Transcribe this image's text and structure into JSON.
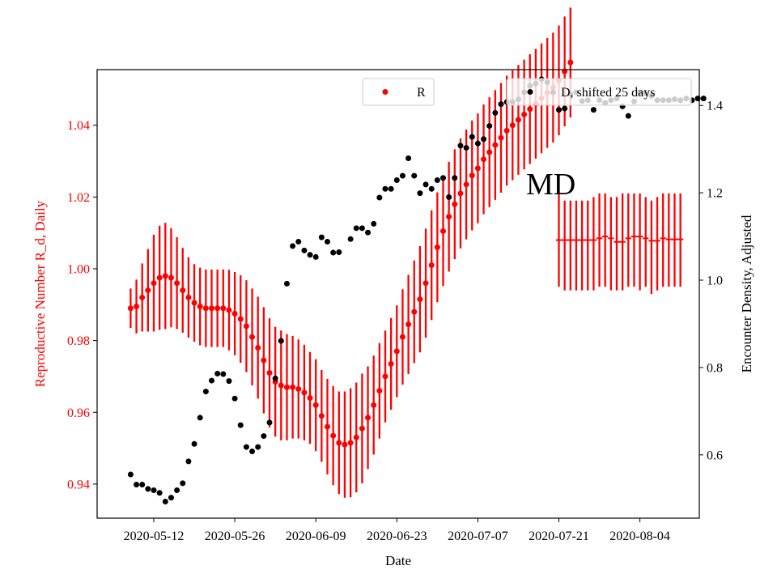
{
  "chart_data": {
    "type": "scatter",
    "title": "",
    "xlabel": "Date",
    "ylabel_left": "Reproductive Number R_d, Daily",
    "ylabel_right": "Encounter Density, Adjusted",
    "annotation": "MD",
    "x_tick_labels": [
      "2020-05-12",
      "2020-05-26",
      "2020-06-09",
      "2020-06-23",
      "2020-07-07",
      "2020-07-21",
      "2020-08-04"
    ],
    "ylim_left": [
      0.9305,
      1.0555
    ],
    "yticks_left": [
      "0.94",
      "0.96",
      "0.98",
      "1.00",
      "1.02",
      "1.04"
    ],
    "ylim_right": [
      0.455,
      1.482
    ],
    "yticks_right": [
      "0.6",
      "0.8",
      "1.0",
      "1.2",
      "1.4"
    ],
    "colors": {
      "R": "#ff0000",
      "D": "#000000",
      "axis_left": "#ff0000"
    },
    "legend": {
      "R_label": "R",
      "D_label": "D, shifted 25 days"
    },
    "R_series": {
      "name": "R",
      "start_date": "2020-05-08",
      "values": [
        0.989,
        0.9895,
        0.992,
        0.994,
        0.996,
        0.9975,
        0.998,
        0.9975,
        0.996,
        0.994,
        0.992,
        0.9905,
        0.9895,
        0.989,
        0.989,
        0.989,
        0.989,
        0.9885,
        0.9875,
        0.986,
        0.984,
        0.981,
        0.978,
        0.9745,
        0.971,
        0.9685,
        0.9675,
        0.967,
        0.967,
        0.9665,
        0.9655,
        0.964,
        0.962,
        0.959,
        0.956,
        0.9535,
        0.9515,
        0.951,
        0.9515,
        0.953,
        0.9555,
        0.9585,
        0.962,
        0.966,
        0.97,
        0.9735,
        0.977,
        0.981,
        0.9845,
        0.988,
        0.9915,
        0.996,
        1.001,
        1.006,
        1.0105,
        1.0145,
        1.018,
        1.021,
        1.0235,
        1.026,
        1.028,
        1.0305,
        1.0325,
        1.0345,
        1.0365,
        1.0385,
        1.04,
        1.0415,
        1.043,
        1.0445,
        1.046,
        1.0475,
        1.049,
        1.0505,
        1.0525,
        1.055,
        1.0575
      ],
      "err": [
        0.0055,
        0.0075,
        0.0095,
        0.0115,
        0.0135,
        0.0145,
        0.0148,
        0.0138,
        0.0128,
        0.0118,
        0.0112,
        0.0108,
        0.0108,
        0.0108,
        0.0108,
        0.0108,
        0.0108,
        0.0112,
        0.0116,
        0.0122,
        0.0128,
        0.0135,
        0.0142,
        0.0148,
        0.0152,
        0.0153,
        0.0153,
        0.0148,
        0.0143,
        0.0138,
        0.0133,
        0.0128,
        0.0128,
        0.0128,
        0.0133,
        0.0138,
        0.0143,
        0.0148,
        0.0152,
        0.0153,
        0.0153,
        0.0143,
        0.0138,
        0.0133,
        0.0128,
        0.0128,
        0.0128,
        0.0133,
        0.0138,
        0.0143,
        0.0148,
        0.0152,
        0.0153,
        0.0153,
        0.0153,
        0.0153,
        0.0153,
        0.0153,
        0.0153,
        0.0153,
        0.0153,
        0.0153,
        0.0153,
        0.0153,
        0.0153,
        0.0153,
        0.0153,
        0.0153,
        0.0153,
        0.0153,
        0.0153,
        0.0153,
        0.0153,
        0.0153,
        0.0153,
        0.0153,
        0.0153
      ]
    },
    "R_flat_series": {
      "start_date": "2020-07-21",
      "values": [
        1.008,
        1.008,
        1.008,
        1.008,
        1.008,
        1.008,
        1.008,
        1.0085,
        1.009,
        1.0085,
        1.0075,
        1.0075,
        1.0085,
        1.009,
        1.009,
        1.0085,
        1.0078,
        1.0078,
        1.0085,
        1.0082,
        1.0082,
        1.0082
      ],
      "lower": [
        0.995,
        0.994,
        0.994,
        0.994,
        0.994,
        0.994,
        0.994,
        0.995,
        0.995,
        0.994,
        0.994,
        0.994,
        0.995,
        0.995,
        0.994,
        0.995,
        0.993,
        0.994,
        0.995,
        0.995,
        0.995,
        0.995
      ],
      "upper": [
        1.021,
        1.019,
        1.019,
        1.019,
        1.019,
        1.019,
        1.02,
        1.021,
        1.021,
        1.02,
        1.02,
        1.021,
        1.021,
        1.021,
        1.021,
        1.02,
        1.019,
        1.02,
        1.021,
        1.021,
        1.021,
        1.021
      ]
    },
    "D_series": {
      "name": "D, shifted 25 days",
      "start_date": "2020-05-08",
      "values": [
        0.555,
        0.532,
        0.532,
        0.522,
        0.519,
        0.513,
        0.493,
        0.502,
        0.519,
        0.535,
        0.585,
        0.625,
        0.685,
        0.745,
        0.77,
        0.786,
        0.785,
        0.769,
        0.729,
        0.668,
        0.618,
        0.608,
        0.618,
        0.643,
        0.674,
        0.775,
        0.861,
        0.992,
        1.078,
        1.088,
        1.068,
        1.058,
        1.053,
        1.098,
        1.088,
        1.063,
        1.064,
        1.094,
        1.119,
        1.119,
        1.109,
        1.129,
        1.189,
        1.209,
        1.209,
        1.229,
        1.239,
        1.279,
        1.239,
        1.199,
        1.219,
        1.209,
        1.229,
        1.234,
        1.19,
        1.234,
        1.308,
        1.303,
        1.328,
        1.313,
        1.323,
        1.353,
        1.383,
        1.403,
        1.408,
        1.408,
        1.414,
        1.43,
        1.445,
        1.45,
        1.46,
        1.453,
        1.43,
        1.39,
        1.393,
        1.426,
        1.43,
        1.41,
        1.412,
        1.39,
        1.412,
        1.406,
        1.412,
        1.416,
        1.398,
        1.376,
        1.409,
        1.43,
        1.428,
        1.422,
        1.412,
        1.412,
        1.412,
        1.414,
        1.412,
        1.416,
        1.412,
        1.416,
        1.416
      ],
      "gap_after_index": 36
    }
  }
}
